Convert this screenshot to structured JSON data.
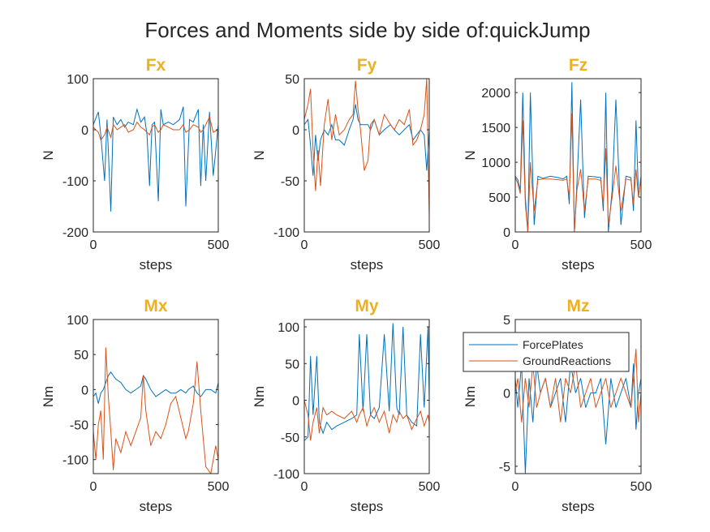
{
  "figure_title": "Forces and Moments side by side of:quickJump",
  "colors": {
    "ForcePlates": "#0072BD",
    "GroundReactions": "#D95319",
    "subplot_title": "#EDB120"
  },
  "legend": {
    "location": "subplot Mz, top-left",
    "entries": [
      "ForcePlates",
      "GroundReactions"
    ]
  },
  "chart_data": [
    {
      "type": "line",
      "title": "Fx",
      "xlabel": "steps",
      "ylabel": "N",
      "xlim": [
        0,
        500
      ],
      "ylim": [
        -200,
        100
      ],
      "xticks": [
        0,
        500
      ],
      "yticks": [
        -200,
        -100,
        0,
        100
      ],
      "x": [
        0,
        20,
        30,
        45,
        55,
        70,
        80,
        95,
        110,
        125,
        140,
        160,
        175,
        190,
        205,
        215,
        225,
        235,
        245,
        260,
        270,
        280,
        300,
        320,
        345,
        360,
        370,
        385,
        400,
        420,
        430,
        440,
        450,
        465,
        480,
        500
      ],
      "series": [
        {
          "name": "ForcePlates",
          "values": [
            10,
            35,
            -10,
            -100,
            20,
            -160,
            25,
            10,
            20,
            5,
            15,
            10,
            40,
            15,
            25,
            -10,
            -110,
            10,
            15,
            -140,
            40,
            10,
            15,
            10,
            20,
            45,
            -150,
            20,
            15,
            40,
            -110,
            10,
            -100,
            35,
            -90,
            10
          ]
        },
        {
          "name": "GroundReactions",
          "values": [
            5,
            -5,
            -20,
            -10,
            5,
            -15,
            10,
            0,
            5,
            10,
            -5,
            0,
            15,
            5,
            0,
            -5,
            -10,
            5,
            10,
            -5,
            0,
            10,
            5,
            0,
            0,
            10,
            -5,
            0,
            10,
            5,
            -5,
            0,
            10,
            25,
            -5,
            0
          ]
        }
      ]
    },
    {
      "type": "line",
      "title": "Fy",
      "xlabel": "steps",
      "ylabel": "N",
      "xlim": [
        0,
        500
      ],
      "ylim": [
        -100,
        50
      ],
      "xticks": [
        0,
        500
      ],
      "yticks": [
        -100,
        -50,
        0,
        50
      ],
      "x": [
        0,
        15,
        25,
        35,
        45,
        55,
        65,
        80,
        95,
        110,
        125,
        140,
        160,
        180,
        195,
        205,
        215,
        225,
        240,
        255,
        265,
        280,
        300,
        320,
        345,
        360,
        380,
        400,
        420,
        435,
        450,
        465,
        480,
        490,
        500
      ],
      "series": [
        {
          "name": "ForcePlates",
          "values": [
            5,
            10,
            -15,
            -45,
            -5,
            -30,
            -10,
            0,
            -5,
            5,
            -10,
            -10,
            -15,
            0,
            10,
            25,
            10,
            5,
            5,
            5,
            0,
            10,
            -5,
            0,
            5,
            0,
            -5,
            0,
            5,
            -10,
            -5,
            0,
            -5,
            -40,
            0
          ]
        },
        {
          "name": "GroundReactions",
          "values": [
            10,
            25,
            40,
            -20,
            -60,
            -20,
            -55,
            5,
            30,
            -10,
            15,
            -5,
            0,
            10,
            15,
            48,
            20,
            0,
            -40,
            -30,
            5,
            10,
            -5,
            15,
            5,
            0,
            10,
            5,
            20,
            -15,
            -10,
            0,
            15,
            50,
            -85
          ]
        }
      ]
    },
    {
      "type": "line",
      "title": "Fz",
      "xlabel": "steps",
      "ylabel": "N",
      "xlim": [
        0,
        500
      ],
      "ylim": [
        0,
        2200
      ],
      "xticks": [
        0,
        500
      ],
      "yticks": [
        0,
        500,
        1000,
        1500,
        2000
      ],
      "x": [
        0,
        10,
        20,
        30,
        40,
        50,
        60,
        75,
        90,
        110,
        140,
        170,
        190,
        205,
        215,
        225,
        235,
        245,
        260,
        275,
        290,
        320,
        340,
        350,
        360,
        370,
        385,
        400,
        420,
        440,
        460,
        470,
        480,
        490,
        500
      ],
      "series": [
        {
          "name": "ForcePlates",
          "values": [
            800,
            750,
            600,
            2000,
            500,
            0,
            2000,
            100,
            800,
            770,
            800,
            780,
            760,
            800,
            400,
            2150,
            0,
            700,
            1900,
            200,
            800,
            790,
            780,
            300,
            2000,
            0,
            600,
            1900,
            100,
            800,
            780,
            300,
            1600,
            500,
            800
          ]
        },
        {
          "name": "GroundReactions",
          "values": [
            780,
            700,
            550,
            1600,
            400,
            0,
            1000,
            300,
            750,
            760,
            760,
            750,
            740,
            760,
            500,
            1700,
            0,
            600,
            900,
            300,
            760,
            760,
            740,
            400,
            1200,
            100,
            500,
            950,
            300,
            760,
            740,
            400,
            900,
            500,
            780
          ]
        }
      ]
    },
    {
      "type": "line",
      "title": "Mx",
      "xlabel": "steps",
      "ylabel": "Nm",
      "xlim": [
        0,
        500
      ],
      "ylim": [
        -120,
        100
      ],
      "xticks": [
        0,
        500
      ],
      "yticks": [
        -100,
        -50,
        0,
        50,
        100
      ],
      "x": [
        0,
        10,
        20,
        30,
        40,
        50,
        60,
        70,
        80,
        90,
        110,
        130,
        150,
        170,
        190,
        200,
        210,
        230,
        250,
        270,
        290,
        310,
        330,
        350,
        370,
        380,
        400,
        415,
        430,
        450,
        470,
        490,
        500
      ],
      "series": [
        {
          "name": "ForcePlates",
          "values": [
            -10,
            -5,
            -20,
            -5,
            0,
            10,
            20,
            25,
            20,
            15,
            10,
            0,
            -5,
            0,
            5,
            20,
            15,
            0,
            -10,
            -5,
            0,
            -5,
            -5,
            0,
            -5,
            0,
            5,
            -5,
            -10,
            0,
            0,
            -5,
            10
          ]
        },
        {
          "name": "GroundReactions",
          "values": [
            -60,
            -100,
            -50,
            -30,
            -100,
            60,
            -10,
            -60,
            -115,
            -70,
            -90,
            -60,
            -80,
            -60,
            -40,
            20,
            -30,
            -80,
            -60,
            -70,
            -50,
            -20,
            -10,
            -40,
            -70,
            -60,
            -20,
            40,
            -30,
            -110,
            -120,
            -80,
            -100
          ]
        }
      ]
    },
    {
      "type": "line",
      "title": "My",
      "xlabel": "steps",
      "ylabel": "Nm",
      "xlim": [
        0,
        500
      ],
      "ylim": [
        -100,
        110
      ],
      "xticks": [
        0,
        500
      ],
      "yticks": [
        -100,
        -50,
        0,
        50,
        100
      ],
      "x": [
        0,
        15,
        25,
        35,
        50,
        60,
        75,
        90,
        110,
        130,
        160,
        190,
        210,
        220,
        235,
        250,
        265,
        280,
        300,
        320,
        340,
        355,
        370,
        380,
        395,
        410,
        430,
        450,
        465,
        480,
        495,
        500
      ],
      "series": [
        {
          "name": "ForcePlates",
          "values": [
            -55,
            -50,
            60,
            -20,
            60,
            -30,
            -45,
            -30,
            -40,
            -35,
            -30,
            -25,
            -20,
            90,
            -15,
            90,
            -20,
            -25,
            -10,
            90,
            -15,
            105,
            -10,
            -20,
            100,
            -20,
            -30,
            -35,
            90,
            -10,
            100,
            0
          ]
        },
        {
          "name": "GroundReactions",
          "values": [
            0,
            -20,
            -55,
            -30,
            -10,
            -45,
            -10,
            -20,
            -15,
            -20,
            -25,
            -15,
            -30,
            -20,
            -10,
            -35,
            -20,
            -10,
            -30,
            -15,
            -45,
            -20,
            -30,
            -15,
            -25,
            -20,
            -40,
            -25,
            -15,
            -35,
            -20,
            -30
          ]
        }
      ]
    },
    {
      "type": "line",
      "title": "Mz",
      "xlabel": "steps",
      "ylabel": "Nm",
      "xlim": [
        0,
        500
      ],
      "ylim": [
        -5.5,
        5
      ],
      "xticks": [
        0,
        500
      ],
      "yticks": [
        -5,
        0,
        5
      ],
      "x": [
        0,
        10,
        25,
        40,
        55,
        70,
        85,
        100,
        120,
        140,
        160,
        180,
        200,
        220,
        240,
        260,
        280,
        300,
        320,
        340,
        360,
        380,
        400,
        420,
        440,
        460,
        470,
        480,
        490,
        500
      ],
      "series": [
        {
          "name": "ForcePlates",
          "values": [
            1,
            -1,
            2,
            -5.5,
            1,
            -2,
            2,
            0,
            1,
            -1,
            0,
            1,
            -2,
            2,
            0,
            1,
            -1,
            0,
            0,
            1,
            -3.5,
            1,
            -1,
            0,
            1,
            -1,
            2,
            -2.5,
            0,
            1
          ]
        },
        {
          "name": "GroundReactions",
          "values": [
            0,
            1,
            -2,
            1,
            -1,
            2,
            -1,
            0,
            1,
            -1,
            1,
            -2,
            1,
            0,
            2,
            -1,
            0,
            1,
            -1,
            0,
            1,
            -1,
            0,
            1,
            0,
            -1,
            1,
            3,
            -2,
            0
          ]
        }
      ]
    }
  ]
}
